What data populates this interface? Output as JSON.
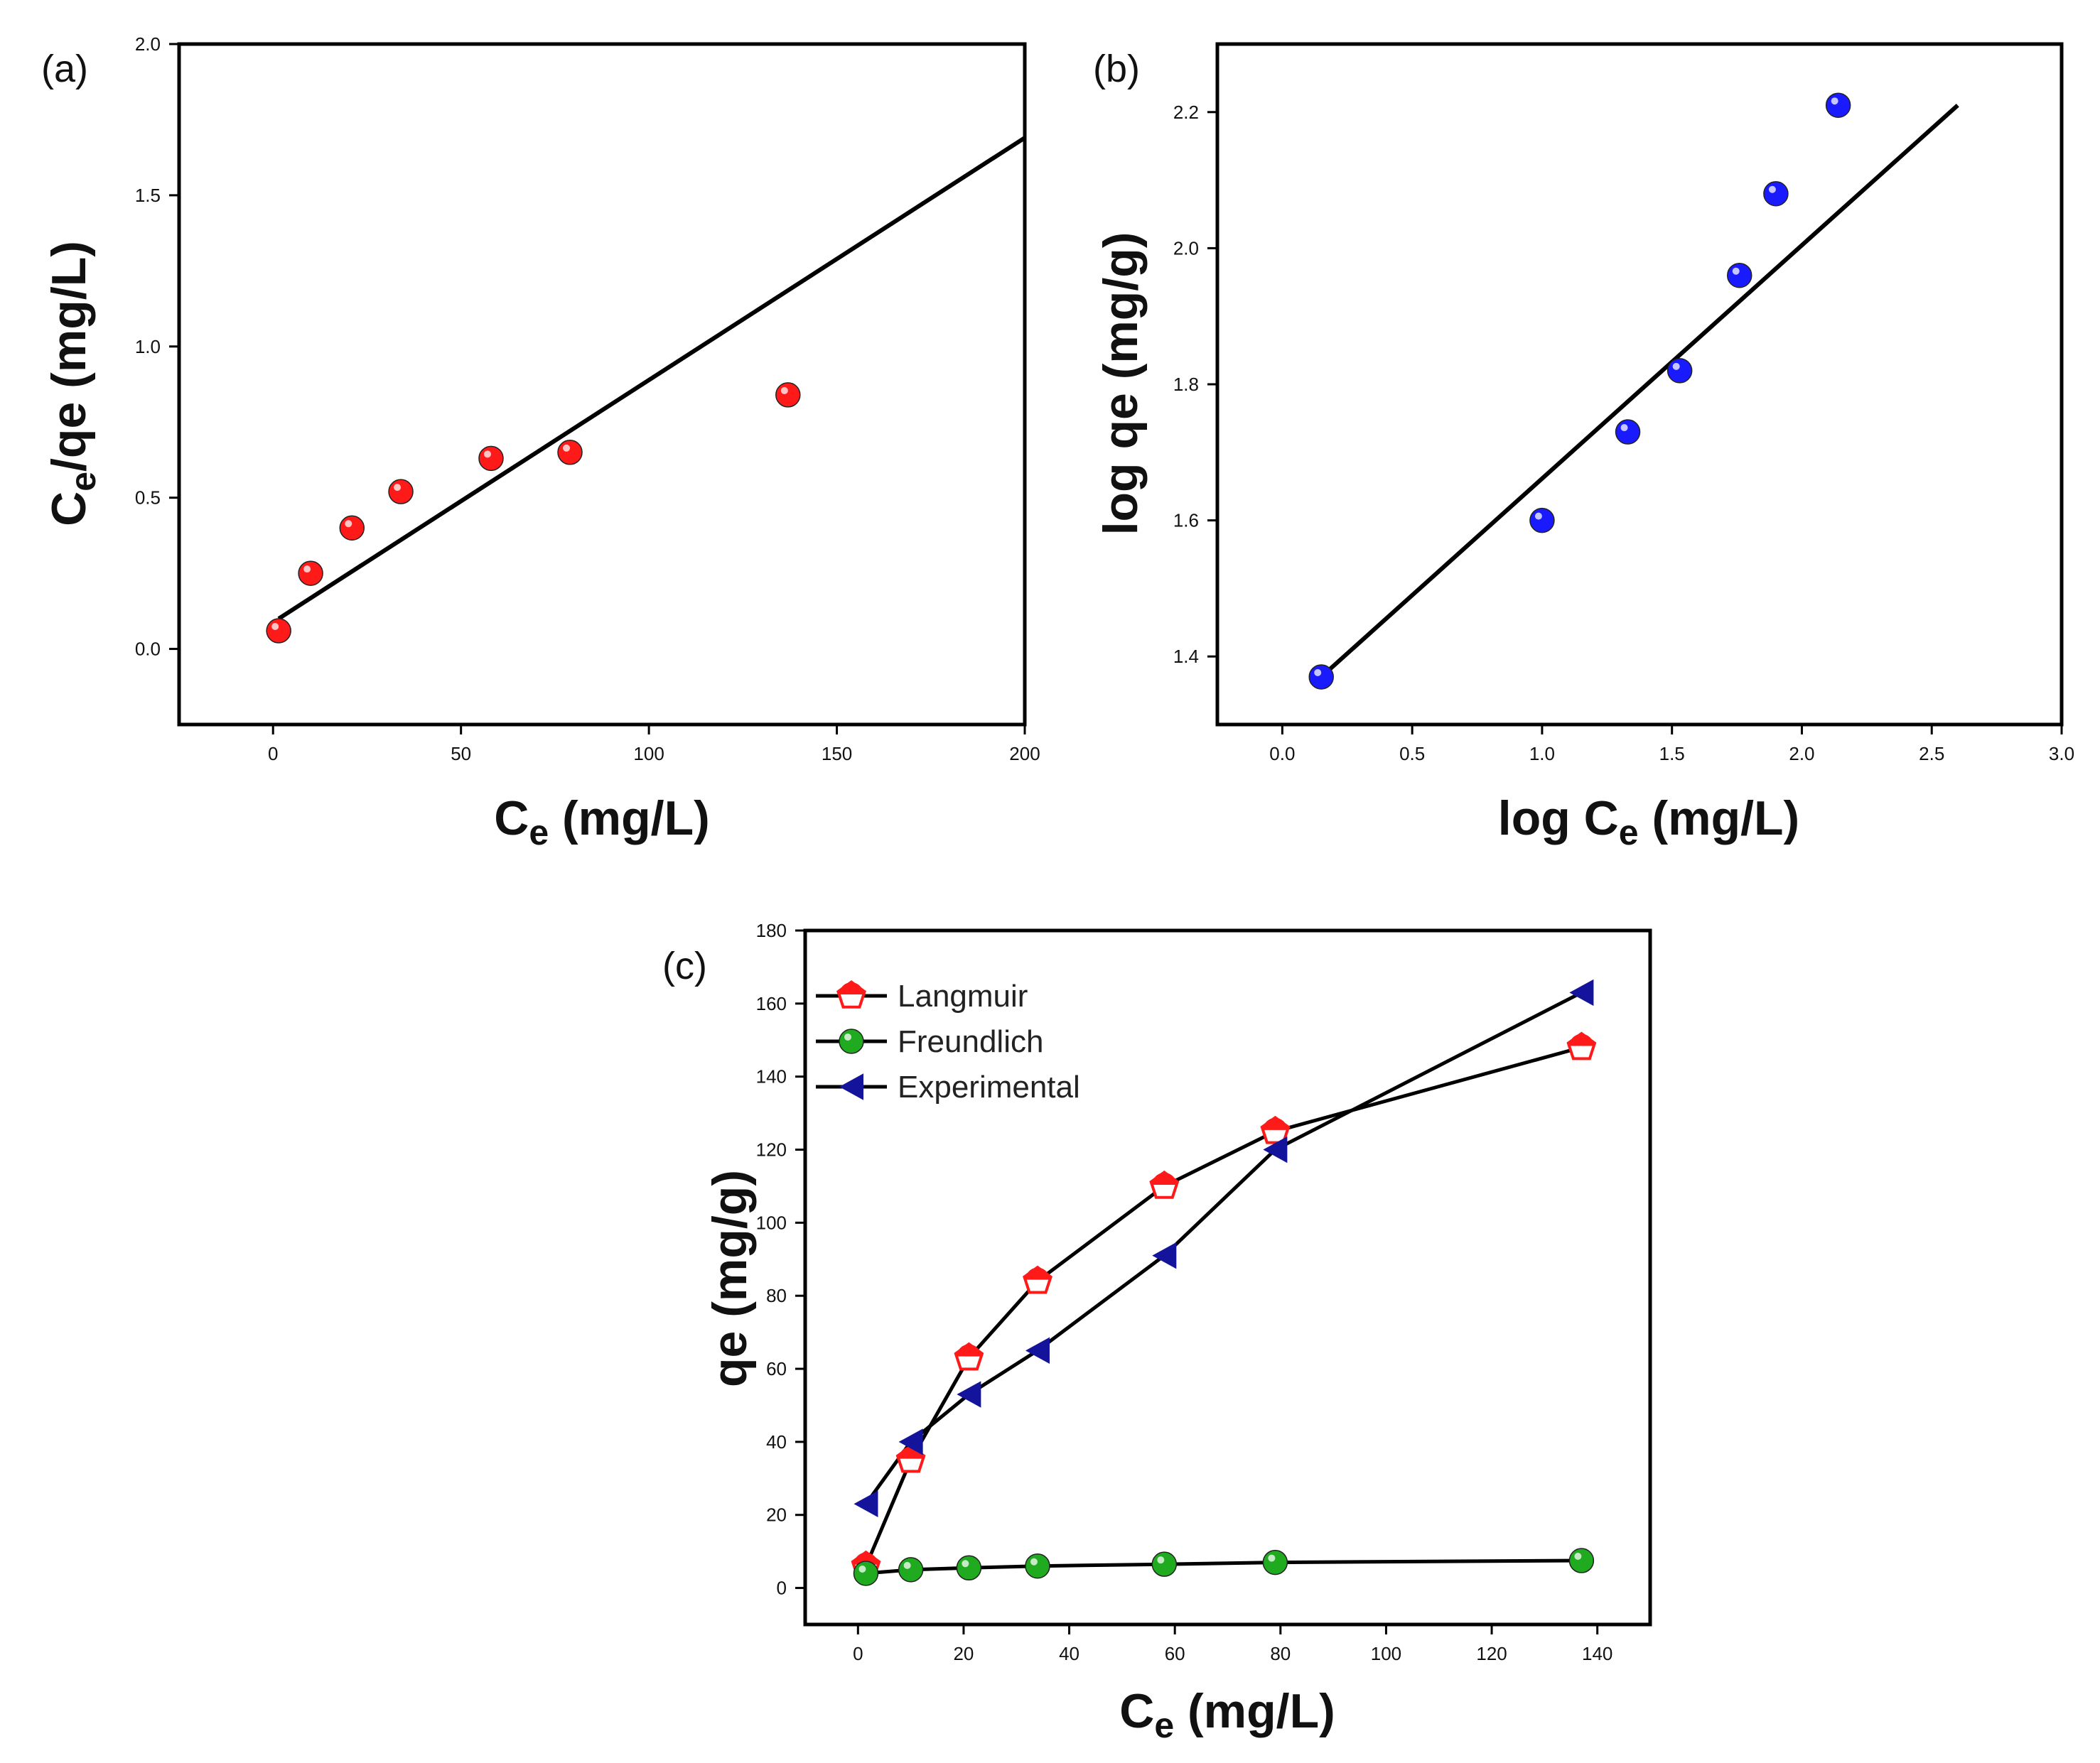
{
  "colors": {
    "red": "#ff1a1a",
    "blue": "#1a1aff",
    "green": "#1faa1f",
    "navy": "#13139c",
    "line": "#000000"
  },
  "chart_data": [
    {
      "id": "a",
      "panel_label": "(a)",
      "type": "scatter",
      "xlabel": {
        "main": "C",
        "sub": "e",
        "rest": " (mg/L)"
      },
      "ylabel": {
        "main": "C",
        "sub": "e",
        "rest": "/qe (mg/L)"
      },
      "xlim": [
        -25,
        200
      ],
      "ylim": [
        -0.25,
        2.0
      ],
      "xticks": [
        0,
        50,
        100,
        150,
        200
      ],
      "yticks": [
        0.0,
        0.5,
        1.0,
        1.5,
        2.0
      ],
      "xtick_labels": [
        "0",
        "50",
        "100",
        "150",
        "200"
      ],
      "ytick_labels": [
        "0.0",
        "0.5",
        "1.0",
        "1.5",
        "2.0"
      ],
      "series": [
        {
          "name": "data",
          "x": [
            1.5,
            10,
            21,
            34,
            58,
            79,
            137
          ],
          "y": [
            0.06,
            0.25,
            0.4,
            0.52,
            0.63,
            0.65,
            0.84
          ],
          "color": "#ff1a1a"
        }
      ],
      "fit_line": {
        "x": [
          1.5,
          200
        ],
        "y": [
          0.1,
          1.69
        ]
      }
    },
    {
      "id": "b",
      "panel_label": "(b)",
      "type": "scatter",
      "xlabel": {
        "main": "log C",
        "sub": "e",
        "rest": " (mg/L)"
      },
      "ylabel": {
        "main": "log qe (mg/g)",
        "sub": "",
        "rest": ""
      },
      "xlim": [
        -0.25,
        3.0
      ],
      "ylim": [
        1.3,
        2.3
      ],
      "xticks": [
        0.0,
        0.5,
        1.0,
        1.5,
        2.0,
        2.5,
        3.0
      ],
      "yticks": [
        1.4,
        1.6,
        1.8,
        2.0,
        2.2
      ],
      "xtick_labels": [
        "0.0",
        "0.5",
        "1.0",
        "1.5",
        "2.0",
        "2.5",
        "3.0"
      ],
      "ytick_labels": [
        "1.4",
        "1.6",
        "1.8",
        "2.0",
        "2.2"
      ],
      "series": [
        {
          "name": "data",
          "x": [
            0.15,
            1.0,
            1.33,
            1.53,
            1.76,
            1.9,
            2.14
          ],
          "y": [
            1.37,
            1.6,
            1.73,
            1.82,
            1.96,
            2.08,
            2.21
          ],
          "color": "#1a1aff"
        }
      ],
      "fit_line": {
        "x": [
          0.15,
          2.6
        ],
        "y": [
          1.37,
          2.21
        ]
      }
    },
    {
      "id": "c",
      "panel_label": "(c)",
      "type": "line",
      "xlabel": {
        "main": "C",
        "sub": "e",
        "rest": " (mg/L)"
      },
      "ylabel": {
        "main": "qe (mg/g)",
        "sub": "",
        "rest": ""
      },
      "xlim": [
        -10,
        150
      ],
      "ylim": [
        -10,
        180
      ],
      "xticks": [
        0,
        20,
        40,
        60,
        80,
        100,
        120,
        140
      ],
      "yticks": [
        0,
        20,
        40,
        60,
        80,
        100,
        120,
        140,
        160,
        180
      ],
      "xtick_labels": [
        "0",
        "20",
        "40",
        "60",
        "80",
        "100",
        "120",
        "140"
      ],
      "ytick_labels": [
        "0",
        "20",
        "40",
        "60",
        "80",
        "100",
        "120",
        "140",
        "160",
        "180"
      ],
      "legend_position": "top-left",
      "series": [
        {
          "name": "Langmuir",
          "marker": "pentagon",
          "color": "#ff1a1a",
          "x": [
            1.5,
            10,
            21,
            34,
            58,
            79,
            137
          ],
          "y": [
            6,
            35,
            63,
            84,
            110,
            125,
            148
          ]
        },
        {
          "name": "Freundlich",
          "marker": "circle",
          "color": "#1faa1f",
          "x": [
            1.5,
            10,
            21,
            34,
            58,
            79,
            137
          ],
          "y": [
            4,
            5,
            5.5,
            6,
            6.5,
            7,
            7.5
          ]
        },
        {
          "name": "Experimental",
          "marker": "triangle-left",
          "color": "#13139c",
          "x": [
            1.5,
            10,
            21,
            34,
            58,
            79,
            137
          ],
          "y": [
            23,
            40,
            53,
            65,
            91,
            120,
            163
          ]
        }
      ]
    }
  ]
}
